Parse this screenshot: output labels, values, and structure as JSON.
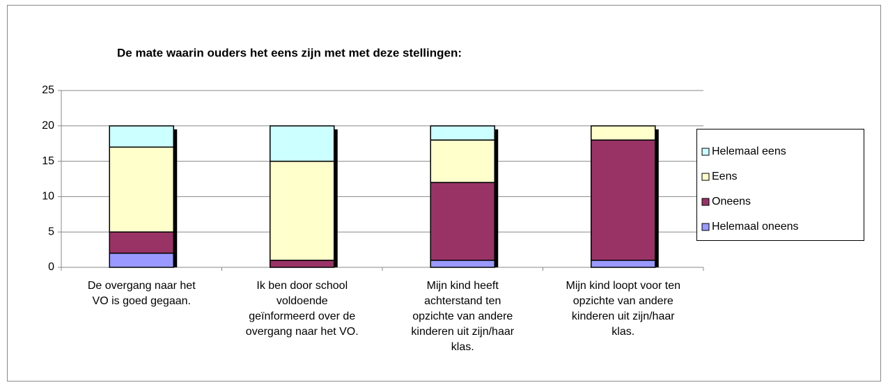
{
  "chart_data": {
    "type": "bar",
    "stacked": true,
    "title": "De mate waarin ouders het eens zijn met met deze stellingen:",
    "categories": [
      "De overgang naar het VO is goed gegaan.",
      "Ik ben door school voldoende geïnformeerd over de overgang naar het VO.",
      "Mijn kind heeft achterstand ten opzichte van andere kinderen uit zijn/haar klas.",
      "Mijn kind loopt voor ten opzichte van andere kinderen uit zijn/haar klas."
    ],
    "series": [
      {
        "name": "Helemaal oneens",
        "color": "#9999ff",
        "values": [
          2,
          0,
          1,
          1
        ]
      },
      {
        "name": "Oneens",
        "color": "#993366",
        "values": [
          3,
          1,
          11,
          17
        ]
      },
      {
        "name": "Eens",
        "color": "#ffffcc",
        "values": [
          12,
          14,
          6,
          2
        ]
      },
      {
        "name": "Helemaal eens",
        "color": "#ccffff",
        "values": [
          3,
          5,
          2,
          0
        ]
      }
    ],
    "ylim": [
      0,
      25
    ],
    "yticks": [
      0,
      5,
      10,
      15,
      20,
      25
    ],
    "grid": true,
    "legend": "right"
  }
}
